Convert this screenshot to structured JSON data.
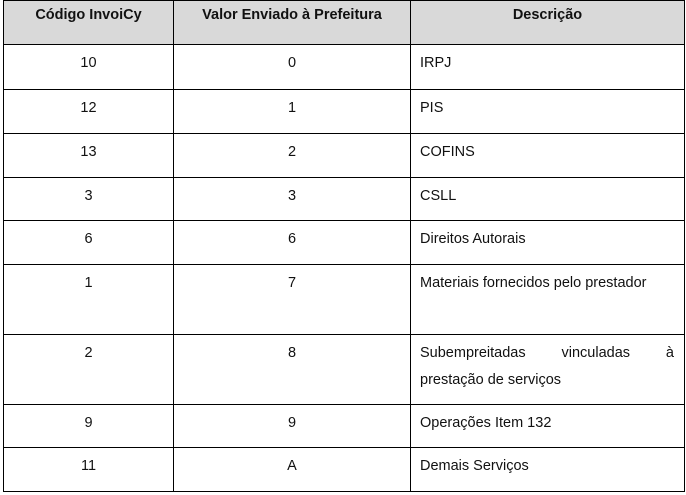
{
  "table": {
    "headers": [
      "Código InvoiCy",
      "Valor Enviado à Prefeitura",
      "Descrição"
    ],
    "rows": [
      {
        "codigo": "10",
        "valor": "0",
        "descricao": "IRPJ"
      },
      {
        "codigo": "12",
        "valor": "1",
        "descricao": "PIS"
      },
      {
        "codigo": "13",
        "valor": "2",
        "descricao": "COFINS"
      },
      {
        "codigo": "3",
        "valor": "3",
        "descricao": "CSLL"
      },
      {
        "codigo": "6",
        "valor": "6",
        "descricao": "Direitos Autorais"
      },
      {
        "codigo": "1",
        "valor": "7",
        "descricao": "Materiais fornecidos pelo prestador"
      },
      {
        "codigo": "2",
        "valor": "8",
        "descricao": "Subempreitadas vinculadas à prestação de serviços"
      },
      {
        "codigo": "9",
        "valor": "9",
        "descricao": "Operações Item 132"
      },
      {
        "codigo": "11",
        "valor": "A",
        "descricao": "Demais Serviços"
      }
    ]
  }
}
